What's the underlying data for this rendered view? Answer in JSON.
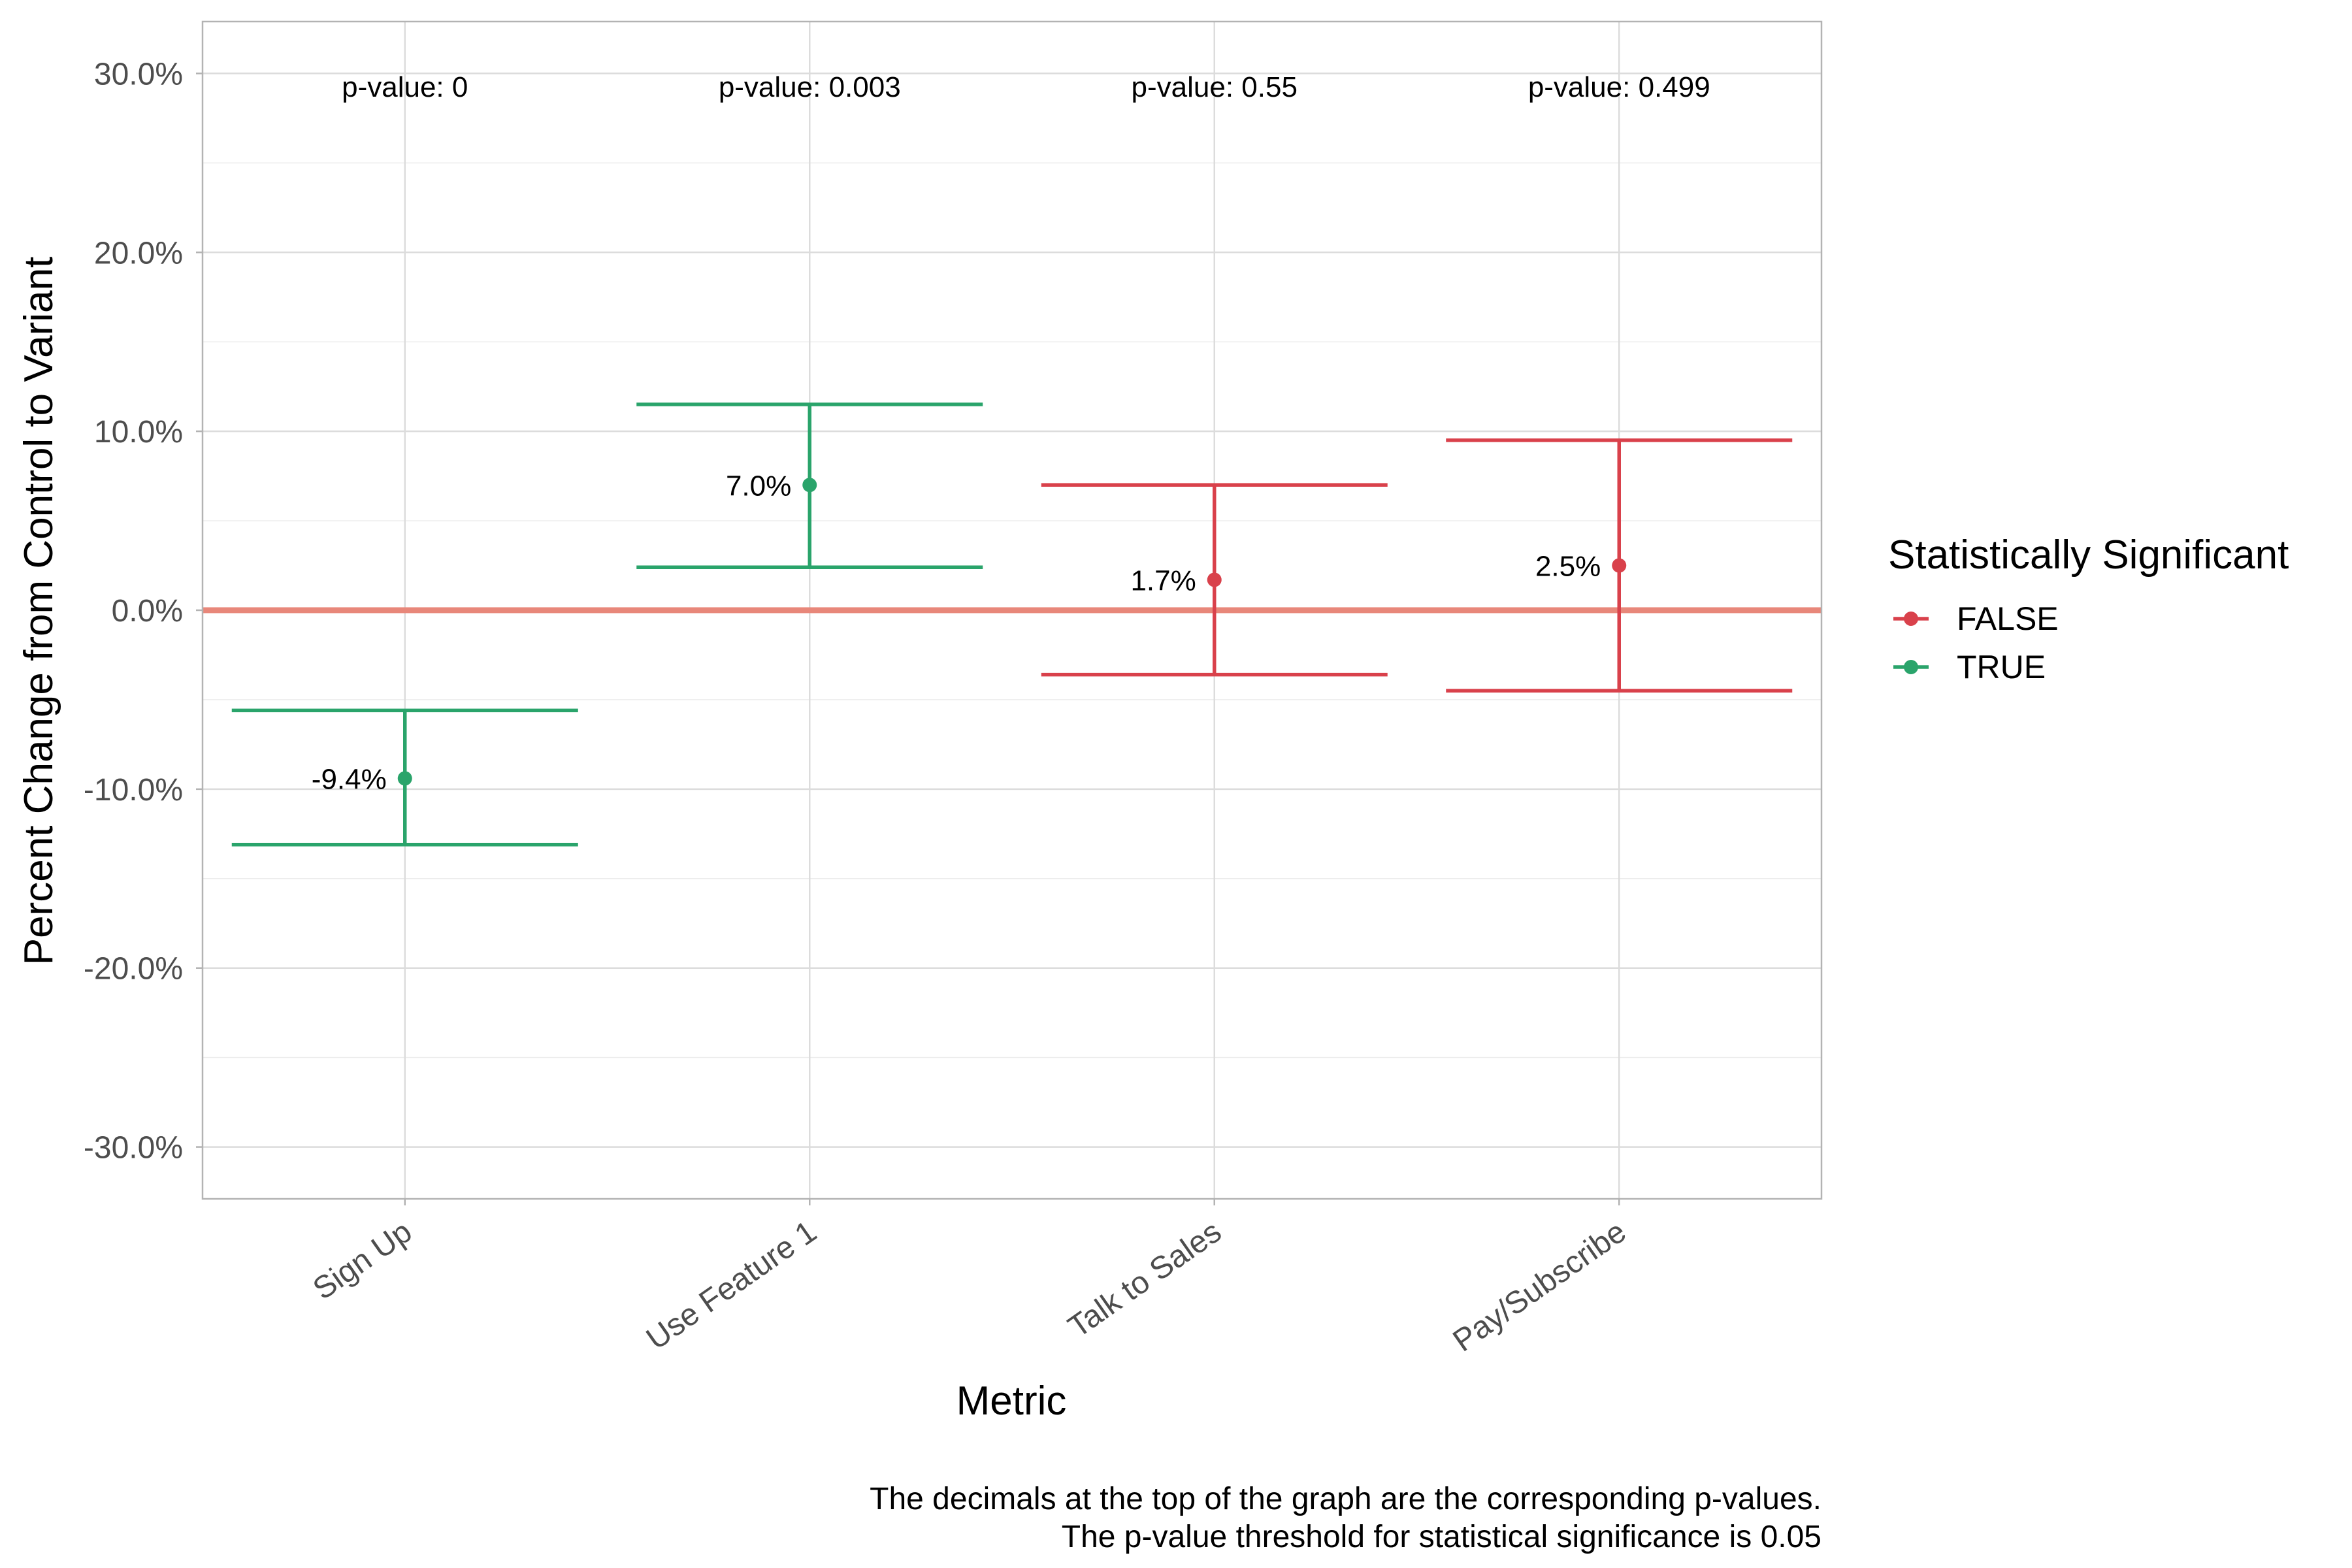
{
  "chart_data": {
    "type": "errorbar",
    "xlabel": "Metric",
    "ylabel": "Percent Change from Control to Variant",
    "ylim": [
      -32.9,
      32.9
    ],
    "y_ticks": [
      -30,
      -20,
      -10,
      0,
      10,
      20,
      30
    ],
    "y_tick_labels": [
      "-30.0%",
      "-20.0%",
      "-10.0%",
      "0.0%",
      "10.0%",
      "20.0%",
      "30.0%"
    ],
    "reference_line": 0,
    "grid": true,
    "categories": [
      "Sign Up",
      "Use Feature 1",
      "Talk to Sales",
      "Pay/Subscribe"
    ],
    "points": [
      {
        "metric": "Sign Up",
        "value": -9.4,
        "lower": -13.1,
        "upper": -5.6,
        "significant": "TRUE",
        "label": "-9.4%",
        "p_label": "p-value: 0"
      },
      {
        "metric": "Use Feature 1",
        "value": 7.0,
        "lower": 2.4,
        "upper": 11.5,
        "significant": "TRUE",
        "label": "7.0%",
        "p_label": "p-value: 0.003"
      },
      {
        "metric": "Talk to Sales",
        "value": 1.7,
        "lower": -3.6,
        "upper": 7.0,
        "significant": "FALSE",
        "label": "1.7%",
        "p_label": "p-value: 0.55"
      },
      {
        "metric": "Pay/Subscribe",
        "value": 2.5,
        "lower": -4.5,
        "upper": 9.5,
        "significant": "FALSE",
        "label": "2.5%",
        "p_label": "p-value: 0.499"
      }
    ],
    "legend": {
      "title": "Statistically Significant",
      "position": "right",
      "entries": [
        {
          "label": "FALSE",
          "color": "#d9414b"
        },
        {
          "label": "TRUE",
          "color": "#2aa46b"
        }
      ]
    },
    "colors": {
      "FALSE": "#d9414b",
      "TRUE": "#2aa46b",
      "reference_line": "#e8877a"
    },
    "caption": [
      "The decimals at the top of the graph are the corresponding p-values.",
      "The p-value threshold for statistical significance is 0.05"
    ]
  }
}
